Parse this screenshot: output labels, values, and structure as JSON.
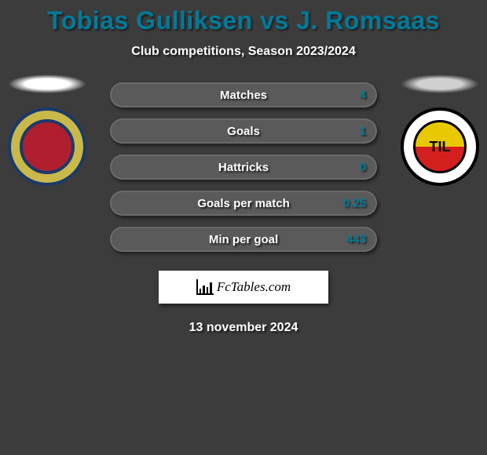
{
  "header": {
    "title": "Tobias Gulliksen vs J. Romsaas",
    "title_color": "#007a99",
    "title_fontsize": 32,
    "subtitle": "Club competitions, Season 2023/2024",
    "subtitle_color": "#ffffff",
    "subtitle_fontsize": 16
  },
  "background_color": "#3c3c3c",
  "left_club": {
    "shadow_color": "#ffffff",
    "crest_bg": "#c9b84a",
    "crest_border": "#1a3a6b",
    "crest_inner": "#b01f2e"
  },
  "right_club": {
    "shadow_color": "#d0d0d0",
    "crest_bg": "#ffffff",
    "crest_border": "#000000",
    "crest_inner_top": "#e8c800",
    "crest_inner_bottom": "#d41f1f",
    "crest_text": "TIL"
  },
  "stats": {
    "row_bg": "#5a5a5a",
    "row_border": "#6a6a6a",
    "label_color": "#ffffff",
    "value_color": "#007a99",
    "label_fontsize": 15,
    "value_fontsize": 15,
    "rows": [
      {
        "label": "Matches",
        "value": "4"
      },
      {
        "label": "Goals",
        "value": "1"
      },
      {
        "label": "Hattricks",
        "value": "0"
      },
      {
        "label": "Goals per match",
        "value": "0.25"
      },
      {
        "label": "Min per goal",
        "value": "443"
      }
    ]
  },
  "footer": {
    "brand": "FcTables.com",
    "brand_bg": "#ffffff",
    "brand_color": "#000000",
    "date": "13 november 2024",
    "date_color": "#ffffff",
    "date_fontsize": 16
  }
}
